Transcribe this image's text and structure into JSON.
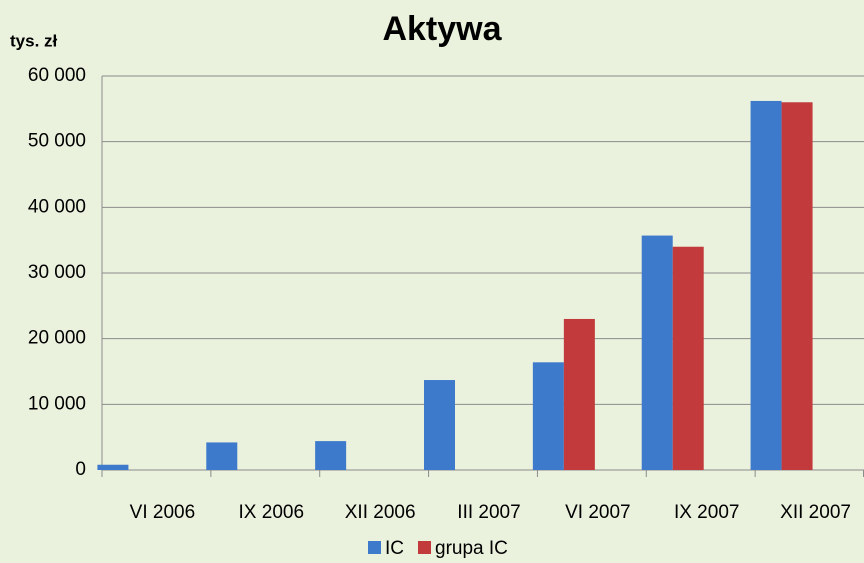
{
  "chart_data": {
    "type": "bar",
    "title": "Aktywa",
    "y_label": "tys. zł",
    "categories": [
      "VI 2006",
      "IX 2006",
      "XII 2006",
      "III 2007",
      "VI 2007",
      "IX 2007",
      "XII 2007"
    ],
    "series": [
      {
        "name": "IC",
        "color": "#3d7acb",
        "values": [
          800,
          4200,
          4400,
          13700,
          16400,
          35700,
          56200
        ]
      },
      {
        "name": "grupa IC",
        "color": "#c23a3b",
        "values": [
          null,
          null,
          null,
          null,
          23000,
          34000,
          56000
        ]
      }
    ],
    "ylim": [
      0,
      60000
    ],
    "yticks": [
      0,
      {
        "value": 10000,
        "label": "10 000"
      },
      {
        "value": 20000,
        "label": "20 000"
      },
      {
        "value": 30000,
        "label": "30 000"
      },
      {
        "value": 40000,
        "label": "40 000"
      },
      {
        "value": 50000,
        "label": "50 000"
      },
      {
        "value": 60000,
        "label": "60 000"
      }
    ],
    "grid": true,
    "legend": "bottom"
  }
}
